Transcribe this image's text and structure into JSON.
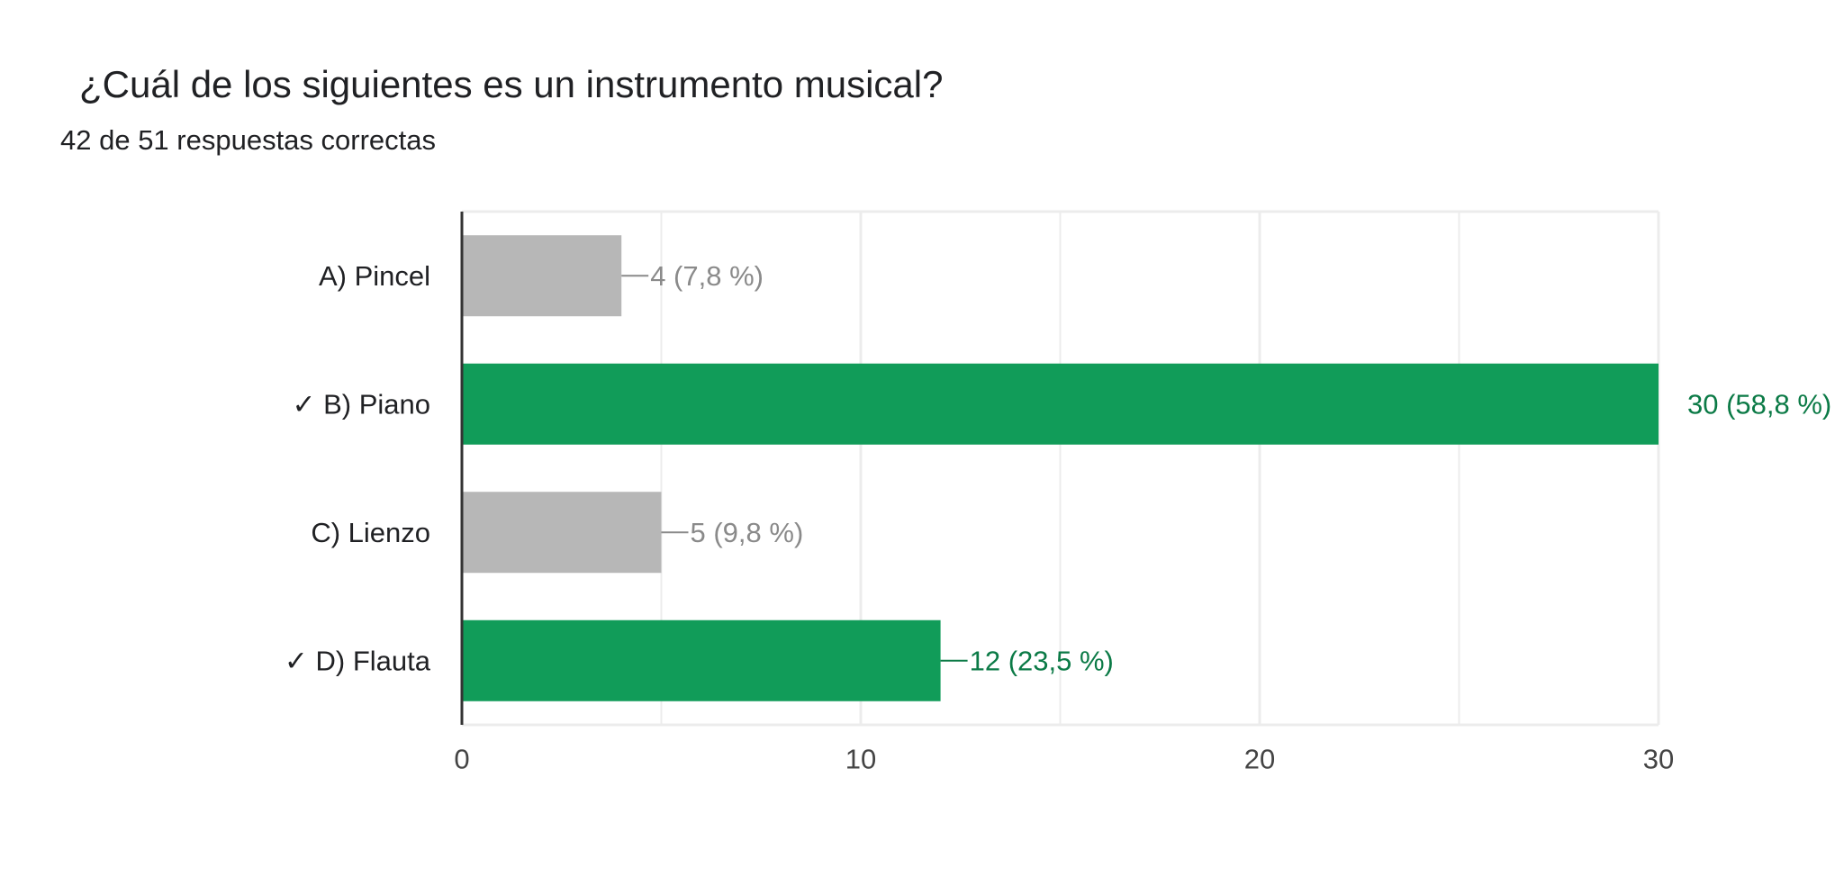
{
  "question": {
    "title": "¿Cuál de los siguientes es un instrumento musical?",
    "summary": "42 de 51 respuestas correctas"
  },
  "colors": {
    "correct": "#119c59",
    "correct_text": "#0b7a46",
    "incorrect": "#b7b7b7",
    "incorrect_text": "#8a8a8a",
    "gridline": "#ececec",
    "axis": "#333333"
  },
  "chart_data": {
    "type": "bar",
    "orientation": "horizontal",
    "title": "",
    "xlabel": "",
    "ylabel": "",
    "categories": [
      "A) Pincel",
      "✓ B) Piano",
      "C) Lienzo",
      "✓ D) Flauta"
    ],
    "values": [
      4,
      30,
      5,
      12
    ],
    "data_labels": [
      "4 (7,8 %)",
      "30 (58,8 %)",
      "5 (9,8 %)",
      "12 (23,5 %)"
    ],
    "correct": [
      false,
      true,
      false,
      true
    ],
    "xlim": [
      0,
      30
    ],
    "x_ticks": [
      0,
      10,
      20,
      30
    ],
    "x_tick_labels": [
      "0",
      "10",
      "20",
      "30"
    ],
    "minor_gridlines": [
      5,
      15,
      25
    ],
    "grid": true,
    "legend": "none"
  }
}
